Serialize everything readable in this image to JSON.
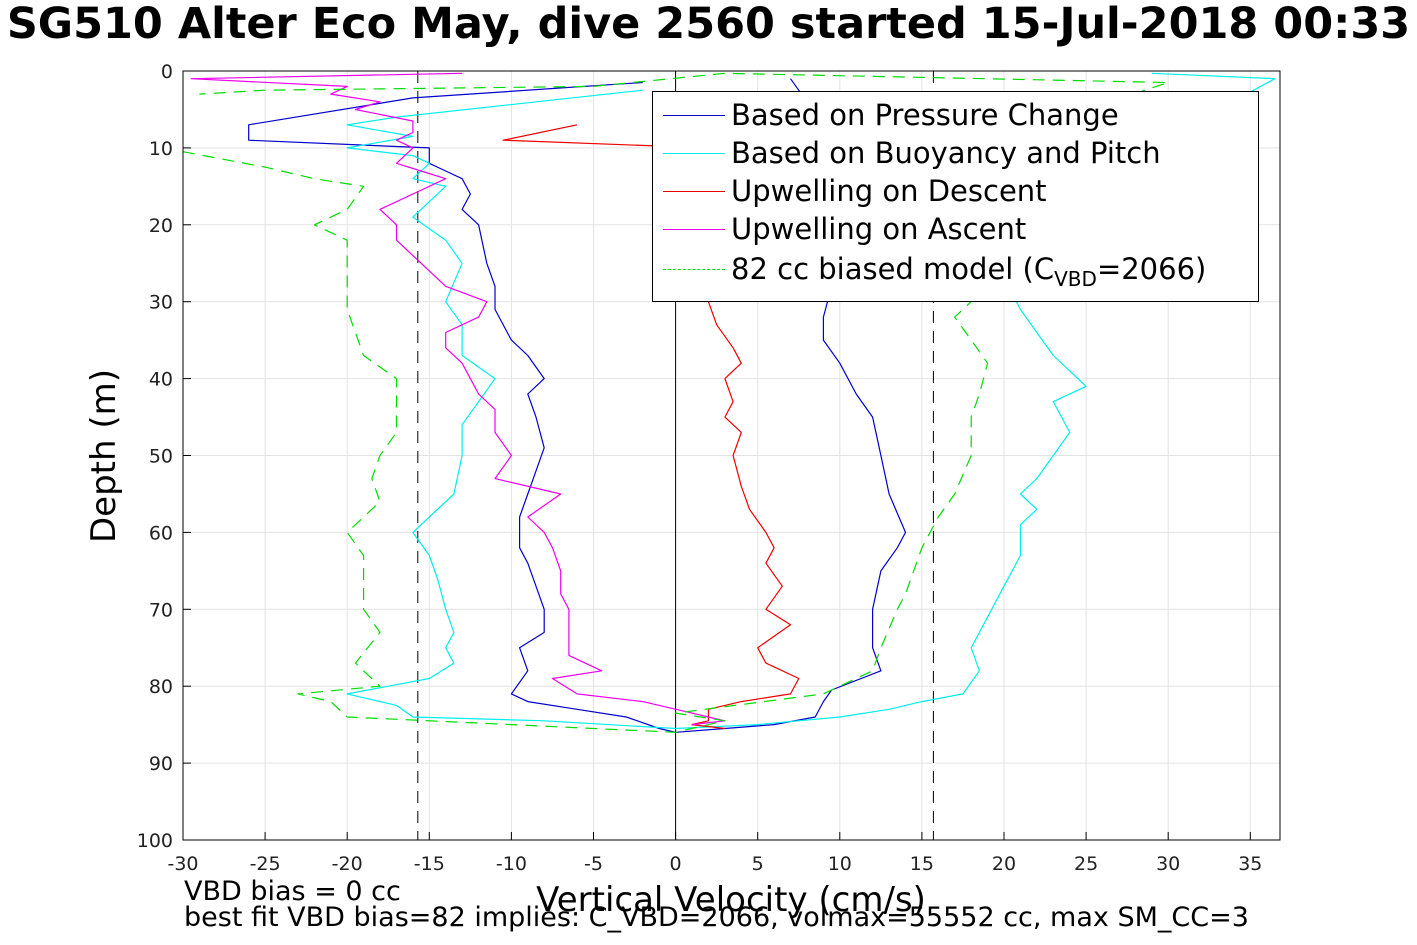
{
  "title": "SG510 Alter Eco May, dive 2560 started 15-Jul-2018 00:33",
  "footer": {
    "line1": "VBD bias = 0 cc",
    "line2": "best fit VBD bias=82 implies: C_VBD=2066, volmax=55552 cc, max SM_CC=3"
  },
  "chart_data": {
    "type": "line",
    "title": "SG510 Alter Eco May, dive 2560 started 15-Jul-2018 00:33",
    "xlabel": "Vertical Velocity (cm/s)",
    "ylabel": "Depth (m)",
    "xlim": [
      -30,
      37
    ],
    "ylim": [
      0,
      100
    ],
    "y_reversed": true,
    "grid": true,
    "legend_placement": "top-right",
    "xticks": [
      "-30",
      "-25",
      "-20",
      "-15",
      "-10",
      "-5",
      "0",
      "5",
      "10",
      "15",
      "20",
      "25",
      "30",
      "35"
    ],
    "yticks": [
      "0",
      "10",
      "20",
      "30",
      "40",
      "50",
      "60",
      "70",
      "80",
      "90",
      "100"
    ],
    "reference_lines": [
      {
        "x": 0,
        "style": "solid",
        "color": "#000000"
      },
      {
        "x": -15.7,
        "style": "dashed",
        "color": "#000000"
      },
      {
        "x": 15.7,
        "style": "dashed",
        "color": "#000000"
      }
    ],
    "series": [
      {
        "name": "Based on Pressure Change",
        "color": "#0000cc",
        "style": "solid",
        "points": [
          [
            -2,
            1.5
          ],
          [
            -16,
            3.5
          ],
          [
            -26,
            7
          ],
          [
            -26,
            9
          ],
          [
            -15,
            10
          ],
          [
            -15,
            12
          ],
          [
            -14,
            13
          ],
          [
            -13,
            14
          ],
          [
            -12.5,
            16
          ],
          [
            -13,
            18
          ],
          [
            -12,
            20
          ],
          [
            -11.5,
            25
          ],
          [
            -11,
            28
          ],
          [
            -11,
            31
          ],
          [
            -10,
            35
          ],
          [
            -9,
            37
          ],
          [
            -8,
            40
          ],
          [
            -9,
            42
          ],
          [
            -8.5,
            45
          ],
          [
            -8,
            49
          ],
          [
            -8.5,
            52
          ],
          [
            -9,
            55
          ],
          [
            -9.5,
            58
          ],
          [
            -9.5,
            62
          ],
          [
            -9,
            64
          ],
          [
            -8.5,
            67
          ],
          [
            -8,
            70
          ],
          [
            -8,
            73
          ],
          [
            -9.5,
            75
          ],
          [
            -9,
            78
          ],
          [
            -10,
            81
          ],
          [
            -9,
            82
          ],
          [
            -6,
            83
          ],
          [
            -3,
            84
          ],
          [
            -1,
            85.5
          ],
          [
            0,
            86
          ],
          [
            3,
            85.5
          ],
          [
            6,
            85
          ],
          [
            8.5,
            84
          ],
          [
            9,
            82
          ],
          [
            9.5,
            80.5
          ],
          [
            12.5,
            78
          ],
          [
            12,
            75
          ],
          [
            12,
            70
          ],
          [
            12.5,
            65
          ],
          [
            13.5,
            62
          ],
          [
            14,
            60
          ],
          [
            13,
            55
          ],
          [
            12.5,
            50
          ],
          [
            12,
            45
          ],
          [
            11,
            42
          ],
          [
            10,
            38
          ],
          [
            9,
            35
          ],
          [
            9,
            32
          ],
          [
            9.5,
            28
          ],
          [
            9,
            22
          ],
          [
            10,
            18
          ],
          [
            10,
            15
          ],
          [
            10.5,
            10
          ],
          [
            10,
            7
          ],
          [
            8,
            4
          ],
          [
            7,
            1
          ]
        ]
      },
      {
        "name": "Based on Buoyancy and Pitch",
        "color": "#00eeee",
        "style": "solid",
        "points": [
          [
            -2,
            2.5
          ],
          [
            -17,
            6
          ],
          [
            -20,
            7
          ],
          [
            -16,
            8.5
          ],
          [
            -20,
            10
          ],
          [
            -16,
            11
          ],
          [
            -15,
            12
          ],
          [
            -16,
            14
          ],
          [
            -14,
            15
          ],
          [
            -16,
            19
          ],
          [
            -14,
            22
          ],
          [
            -13,
            25
          ],
          [
            -14,
            30
          ],
          [
            -13,
            33
          ],
          [
            -13,
            37
          ],
          [
            -11,
            40
          ],
          [
            -12,
            43
          ],
          [
            -13,
            46
          ],
          [
            -13,
            50
          ],
          [
            -13.5,
            55
          ],
          [
            -15,
            58
          ],
          [
            -16,
            60
          ],
          [
            -15,
            63
          ],
          [
            -14.5,
            66
          ],
          [
            -14,
            70
          ],
          [
            -13.5,
            73
          ],
          [
            -14,
            75
          ],
          [
            -13.5,
            77
          ],
          [
            -15,
            79
          ],
          [
            -20,
            81
          ],
          [
            -17,
            82.5
          ],
          [
            -16,
            84
          ],
          [
            -8,
            84.5
          ],
          [
            0,
            85.5
          ],
          [
            5,
            85
          ],
          [
            10,
            84
          ],
          [
            13,
            83
          ],
          [
            15,
            82
          ],
          [
            17.5,
            81
          ],
          [
            18.5,
            78
          ],
          [
            18,
            75
          ],
          [
            19,
            71
          ],
          [
            20,
            67
          ],
          [
            21,
            63
          ],
          [
            21,
            59
          ],
          [
            22,
            57
          ],
          [
            21,
            55
          ],
          [
            22,
            53
          ],
          [
            23,
            50
          ],
          [
            24,
            47
          ],
          [
            23,
            43
          ],
          [
            25,
            41
          ],
          [
            24,
            39
          ],
          [
            23,
            37
          ],
          [
            22,
            34
          ],
          [
            21,
            31
          ],
          [
            20,
            27
          ],
          [
            20.5,
            23
          ],
          [
            21,
            18
          ],
          [
            25,
            13
          ],
          [
            30,
            9
          ],
          [
            33,
            5
          ],
          [
            36.5,
            1
          ],
          [
            29,
            0.3
          ]
        ]
      },
      {
        "name": "Upwelling on Descent",
        "color": "#ee0000",
        "style": "solid",
        "points": [
          [
            -6,
            7
          ],
          [
            -10.5,
            9
          ],
          [
            2,
            10
          ],
          [
            2,
            12
          ],
          [
            2,
            16
          ],
          [
            2,
            22
          ],
          [
            2,
            26
          ],
          [
            2,
            30
          ],
          [
            2.5,
            33
          ],
          [
            3.5,
            36
          ],
          [
            4,
            38
          ],
          [
            3,
            40
          ],
          [
            3.5,
            43
          ],
          [
            3,
            45
          ],
          [
            4,
            47
          ],
          [
            3.5,
            50
          ],
          [
            4,
            54
          ],
          [
            4.5,
            57
          ],
          [
            5.5,
            60
          ],
          [
            6,
            62
          ],
          [
            5.5,
            64
          ],
          [
            6.5,
            67
          ],
          [
            5.5,
            70
          ],
          [
            7,
            72
          ],
          [
            5,
            75
          ],
          [
            5.5,
            77
          ],
          [
            7.5,
            79
          ],
          [
            7,
            81
          ],
          [
            4,
            82
          ],
          [
            2,
            83
          ],
          [
            2,
            84.5
          ],
          [
            1,
            85
          ],
          [
            3,
            85.5
          ]
        ]
      },
      {
        "name": "Upwelling on Ascent",
        "color": "#ee00ee",
        "style": "solid",
        "points": [
          [
            -13,
            0.3
          ],
          [
            -29.5,
            1
          ],
          [
            -20,
            2
          ],
          [
            -21,
            3
          ],
          [
            -18,
            4
          ],
          [
            -19.5,
            5
          ],
          [
            -16,
            6.5
          ],
          [
            -16,
            8
          ],
          [
            -17,
            9
          ],
          [
            -16,
            10
          ],
          [
            -17,
            12
          ],
          [
            -15.5,
            13
          ],
          [
            -14,
            14
          ],
          [
            -16,
            16
          ],
          [
            -18,
            18
          ],
          [
            -17,
            20
          ],
          [
            -17,
            22
          ],
          [
            -16,
            24
          ],
          [
            -15,
            26
          ],
          [
            -14,
            28
          ],
          [
            -11.5,
            30
          ],
          [
            -12,
            32
          ],
          [
            -14,
            34
          ],
          [
            -14,
            36
          ],
          [
            -13,
            38
          ],
          [
            -12,
            42
          ],
          [
            -11,
            44
          ],
          [
            -11,
            47
          ],
          [
            -10,
            50
          ],
          [
            -11,
            53
          ],
          [
            -7,
            55
          ],
          [
            -9,
            58
          ],
          [
            -8,
            60
          ],
          [
            -7.5,
            62
          ],
          [
            -7,
            65
          ],
          [
            -7,
            68
          ],
          [
            -6.5,
            70
          ],
          [
            -6.5,
            73
          ],
          [
            -6.5,
            76
          ],
          [
            -4.5,
            78
          ],
          [
            -7.5,
            79
          ],
          [
            -6,
            81
          ],
          [
            -2,
            82
          ],
          [
            1,
            83.5
          ],
          [
            2,
            84
          ],
          [
            3,
            84.5
          ],
          [
            1,
            85
          ]
        ]
      },
      {
        "name": "82 cc biased model (C_VBD=2066)",
        "color": "#00dd00",
        "style": "dashed",
        "points": [
          [
            -30,
            10.5
          ],
          [
            -25,
            12.5
          ],
          [
            -22,
            14
          ],
          [
            -19,
            15
          ],
          [
            -20,
            18
          ],
          [
            -22,
            20
          ],
          [
            -20,
            22
          ],
          [
            -20,
            25
          ],
          [
            -20,
            28
          ],
          [
            -20,
            31
          ],
          [
            -19.5,
            34
          ],
          [
            -19,
            37
          ],
          [
            -17,
            40
          ],
          [
            -17,
            44
          ],
          [
            -17,
            47
          ],
          [
            -18,
            50
          ],
          [
            -18.5,
            53
          ],
          [
            -18,
            56
          ],
          [
            -20,
            60
          ],
          [
            -19,
            63
          ],
          [
            -19,
            66
          ],
          [
            -19,
            70
          ],
          [
            -18,
            73
          ],
          [
            -19.5,
            77
          ],
          [
            -18,
            80
          ],
          [
            -23,
            81
          ],
          [
            -21,
            82
          ],
          [
            -20,
            84
          ],
          [
            -10,
            85
          ],
          [
            -5,
            85.5
          ],
          [
            0,
            86
          ],
          [
            3,
            84.5
          ],
          [
            0,
            83.5
          ],
          [
            9,
            81
          ],
          [
            12,
            78
          ],
          [
            12.5,
            75
          ],
          [
            13.5,
            70
          ],
          [
            14,
            68
          ],
          [
            14.5,
            65
          ],
          [
            15,
            62
          ],
          [
            16,
            58
          ],
          [
            17,
            55
          ],
          [
            18,
            50
          ],
          [
            18,
            45
          ],
          [
            18.5,
            42
          ],
          [
            19,
            38
          ],
          [
            18,
            35
          ],
          [
            17,
            32
          ],
          [
            18,
            30
          ],
          [
            18,
            20
          ],
          [
            21,
            10
          ],
          [
            25,
            5
          ],
          [
            30,
            1.5
          ],
          [
            3,
            0.3
          ],
          [
            -5,
            2
          ],
          [
            -25,
            2.5
          ],
          [
            -29,
            3
          ]
        ]
      }
    ]
  },
  "legend": {
    "items": [
      {
        "label": "Based on Pressure Change",
        "color": "#0000cc",
        "style": "solid"
      },
      {
        "label": "Based on Buoyancy and Pitch",
        "color": "#00eeee",
        "style": "solid"
      },
      {
        "label": "Upwelling on Descent",
        "color": "#ee0000",
        "style": "solid"
      },
      {
        "label": "Upwelling on Ascent",
        "color": "#ee00ee",
        "style": "solid"
      },
      {
        "label_main": "82 cc biased model (C",
        "label_sub": "VBD",
        "label_end": "=2066)",
        "color": "#00dd00",
        "style": "dashed"
      }
    ]
  }
}
